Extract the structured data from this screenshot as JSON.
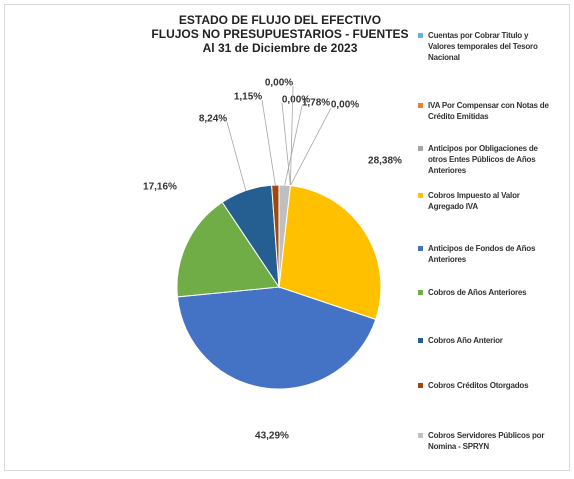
{
  "chart_data": {
    "type": "pie",
    "title": [
      "ESTADO DE FLUJO DEL EFECTIVO",
      "FLUJOS NO PRESUPUESTARIOS - FUENTES",
      "Al 31 de Diciembre de 2023"
    ],
    "categories": [
      "Cuentas por Cobrar Titulo y Valores temporales del Tesoro Nacional",
      "IVA Por Compensar con Notas de Crédito Emitidas",
      "Anticipos por Obligaciones de otros Entes Públicos de Años Anteriores",
      "Cobros Impuesto al Valor Agregado IVA",
      "Anticipos de Fondos de Años Anteriores",
      "Cobros de Años Anteriores",
      "Cobros Año Anterior",
      "Cobros Créditos Otorgados",
      "Cobros Servidores Públicos por Nomina - SPRYN"
    ],
    "values": [
      0,
      0,
      0,
      28.38,
      43.29,
      17.16,
      8.24,
      1.15,
      1.78
    ],
    "value_labels": [
      "0,00%",
      "0,00%",
      "0,00%",
      "28,38%",
      "43,29%",
      "17,16%",
      "8,24%",
      "1,15%",
      "1,78%"
    ],
    "colors": [
      "#5fb4e0",
      "#ed7d31",
      "#a5a5a5",
      "#ffc000",
      "#4472c4",
      "#70ad47",
      "#255e91",
      "#9e480e",
      "#bfbfbf"
    ]
  }
}
